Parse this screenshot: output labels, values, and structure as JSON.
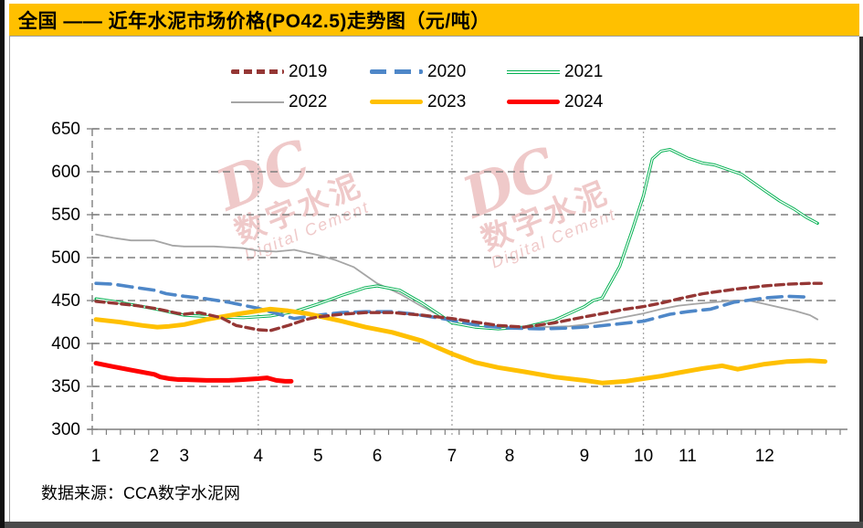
{
  "header": {
    "title": "全国 —— 近年水泥市场价格(PO42.5)走势图（元/吨）",
    "bg_color": "#FFC000"
  },
  "legend": {
    "items": [
      {
        "label": "2019",
        "color": "#953735",
        "style": "dash-short"
      },
      {
        "label": "2020",
        "color": "#4E87C8",
        "style": "dash-long"
      },
      {
        "label": "2021",
        "color": "#00B050",
        "style": "double"
      },
      {
        "label": "2022",
        "color": "#A5A5A5",
        "style": "solid-thin"
      },
      {
        "label": "2023",
        "color": "#FFC000",
        "style": "solid-thick"
      },
      {
        "label": "2024",
        "color": "#FF0000",
        "style": "solid-thick"
      }
    ]
  },
  "watermark": {
    "dc": "DC",
    "cn": "数字水泥",
    "en": "Digital Cement",
    "color": "#E09494"
  },
  "footer": {
    "text": "数据来源：CCA数字水泥网"
  },
  "chart_data": {
    "type": "line",
    "title": "全国近年水泥市场价格(PO42.5)走势图",
    "ylabel": "元/吨",
    "y_axis": {
      "min": 300,
      "max": 650,
      "step": 50,
      "ticks": [
        300,
        350,
        400,
        450,
        500,
        550,
        600,
        650
      ]
    },
    "x_axis": {
      "unit": "month",
      "labels": [
        "1",
        "2",
        "3",
        "4",
        "5",
        "6",
        "7",
        "8",
        "9",
        "10",
        "11",
        "12"
      ],
      "month_anchor_frac": [
        0.005,
        0.083,
        0.123,
        0.222,
        0.302,
        0.381,
        0.481,
        0.558,
        0.658,
        0.737,
        0.796,
        0.899,
        1.0
      ],
      "quarter_gridline_months": [
        4,
        7,
        10
      ],
      "minor_ticks": 54,
      "grid": "dashed-horizontal"
    },
    "legend_position": "top",
    "draw_order": [
      "2022",
      "2021",
      "2020",
      "2023",
      "2019",
      "2024"
    ],
    "series": [
      {
        "name": "2019",
        "color": "#953735",
        "style": "dash-short",
        "stroke_width": 3.4,
        "points": [
          [
            1,
            449
          ],
          [
            1.3,
            447
          ],
          [
            1.7,
            444
          ],
          [
            2,
            441
          ],
          [
            2.4,
            438
          ],
          [
            2.8,
            435
          ],
          [
            3,
            434
          ],
          [
            3.2,
            436
          ],
          [
            3.5,
            430
          ],
          [
            3.7,
            421
          ],
          [
            4,
            416
          ],
          [
            4.2,
            415
          ],
          [
            4.5,
            421
          ],
          [
            4.8,
            428
          ],
          [
            5,
            431
          ],
          [
            5.4,
            434
          ],
          [
            5.8,
            436
          ],
          [
            6.2,
            436
          ],
          [
            6.6,
            433
          ],
          [
            7,
            429
          ],
          [
            7.4,
            425
          ],
          [
            7.8,
            421
          ],
          [
            8.2,
            419
          ],
          [
            8.6,
            424
          ],
          [
            9,
            431
          ],
          [
            9.4,
            436
          ],
          [
            9.7,
            440
          ],
          [
            10,
            443
          ],
          [
            10.4,
            447
          ],
          [
            10.8,
            452
          ],
          [
            11.2,
            458
          ],
          [
            11.6,
            463
          ],
          [
            12,
            467
          ],
          [
            12.3,
            469
          ],
          [
            12.6,
            470
          ],
          [
            12.75,
            470
          ]
        ]
      },
      {
        "name": "2020",
        "color": "#4E87C8",
        "style": "dash-long",
        "stroke_width": 3.6,
        "points": [
          [
            1,
            470
          ],
          [
            1.3,
            469
          ],
          [
            1.6,
            466
          ],
          [
            2,
            462
          ],
          [
            2.4,
            458
          ],
          [
            2.8,
            456
          ],
          [
            3,
            455
          ],
          [
            3.3,
            452
          ],
          [
            3.6,
            448
          ],
          [
            4,
            441
          ],
          [
            4.3,
            435
          ],
          [
            4.6,
            429
          ],
          [
            5,
            433
          ],
          [
            5.4,
            436
          ],
          [
            5.8,
            437
          ],
          [
            6.2,
            437
          ],
          [
            6.5,
            434
          ],
          [
            6.8,
            430
          ],
          [
            7,
            427
          ],
          [
            7.3,
            423
          ],
          [
            7.6,
            420
          ],
          [
            8,
            418
          ],
          [
            8.4,
            417
          ],
          [
            8.8,
            418
          ],
          [
            9.2,
            420
          ],
          [
            9.6,
            423
          ],
          [
            10,
            426
          ],
          [
            10.3,
            430
          ],
          [
            10.6,
            434
          ],
          [
            11,
            437
          ],
          [
            11.3,
            440
          ],
          [
            11.6,
            448
          ],
          [
            12,
            453
          ],
          [
            12.3,
            455
          ],
          [
            12.55,
            454
          ]
        ]
      },
      {
        "name": "2021",
        "color": "#00B050",
        "style": "double",
        "stroke_width": 3.2,
        "points": [
          [
            1,
            452
          ],
          [
            1.4,
            448
          ],
          [
            1.8,
            443
          ],
          [
            2.2,
            439
          ],
          [
            2.6,
            436
          ],
          [
            3,
            433
          ],
          [
            3.4,
            431
          ],
          [
            3.8,
            430
          ],
          [
            4.2,
            432
          ],
          [
            4.6,
            437
          ],
          [
            5,
            446
          ],
          [
            5.4,
            456
          ],
          [
            5.8,
            465
          ],
          [
            6,
            467
          ],
          [
            6.3,
            462
          ],
          [
            6.6,
            447
          ],
          [
            7,
            424
          ],
          [
            7.4,
            419
          ],
          [
            7.8,
            417
          ],
          [
            8.2,
            419
          ],
          [
            8.6,
            427
          ],
          [
            9,
            443
          ],
          [
            9.15,
            450
          ],
          [
            9.3,
            453
          ],
          [
            9.6,
            490
          ],
          [
            9.8,
            530
          ],
          [
            10,
            572
          ],
          [
            10.2,
            615
          ],
          [
            10.4,
            624
          ],
          [
            10.6,
            626
          ],
          [
            10.8,
            621
          ],
          [
            11,
            616
          ],
          [
            11.2,
            610
          ],
          [
            11.35,
            608
          ],
          [
            11.7,
            597
          ],
          [
            12,
            578
          ],
          [
            12.2,
            566
          ],
          [
            12.4,
            556
          ],
          [
            12.55,
            547
          ],
          [
            12.7,
            540
          ]
        ]
      },
      {
        "name": "2022",
        "color": "#A5A5A5",
        "style": "solid",
        "stroke_width": 1.8,
        "points": [
          [
            1,
            527
          ],
          [
            1.3,
            523
          ],
          [
            1.6,
            520
          ],
          [
            2,
            520
          ],
          [
            2.3,
            517
          ],
          [
            2.6,
            514
          ],
          [
            3,
            513
          ],
          [
            3.4,
            513
          ],
          [
            3.8,
            511
          ],
          [
            4,
            508
          ],
          [
            4.3,
            507
          ],
          [
            4.6,
            509
          ],
          [
            5,
            503
          ],
          [
            5.3,
            497
          ],
          [
            5.6,
            489
          ],
          [
            6,
            470
          ],
          [
            6.3,
            458
          ],
          [
            6.6,
            443
          ],
          [
            7,
            425
          ],
          [
            7.3,
            420
          ],
          [
            7.6,
            418
          ],
          [
            8,
            418
          ],
          [
            8.4,
            419
          ],
          [
            8.8,
            420
          ],
          [
            9,
            422
          ],
          [
            9.4,
            427
          ],
          [
            9.7,
            431
          ],
          [
            10,
            435
          ],
          [
            10.4,
            440
          ],
          [
            10.8,
            444
          ],
          [
            11.2,
            447
          ],
          [
            11.6,
            450
          ],
          [
            11.8,
            450
          ],
          [
            12,
            446
          ],
          [
            12.2,
            442
          ],
          [
            12.4,
            438
          ],
          [
            12.6,
            433
          ],
          [
            12.7,
            428
          ]
        ]
      },
      {
        "name": "2023",
        "color": "#FFC000",
        "style": "solid",
        "stroke_width": 5,
        "points": [
          [
            1,
            428
          ],
          [
            1.4,
            425
          ],
          [
            1.8,
            421
          ],
          [
            2.1,
            419
          ],
          [
            2.5,
            420
          ],
          [
            3,
            422
          ],
          [
            3.3,
            428
          ],
          [
            3.7,
            434
          ],
          [
            4,
            438
          ],
          [
            4.2,
            440
          ],
          [
            4.5,
            438
          ],
          [
            4.8,
            435
          ],
          [
            5,
            432
          ],
          [
            5.4,
            426
          ],
          [
            5.8,
            419
          ],
          [
            6.2,
            413
          ],
          [
            6.6,
            403
          ],
          [
            7,
            388
          ],
          [
            7.4,
            378
          ],
          [
            7.8,
            372
          ],
          [
            8.2,
            367
          ],
          [
            8.6,
            361
          ],
          [
            9,
            357
          ],
          [
            9.3,
            354
          ],
          [
            9.7,
            356
          ],
          [
            10,
            359
          ],
          [
            10.4,
            362
          ],
          [
            10.8,
            366
          ],
          [
            11.2,
            371
          ],
          [
            11.45,
            374
          ],
          [
            11.65,
            370
          ],
          [
            12,
            376
          ],
          [
            12.3,
            379
          ],
          [
            12.6,
            380
          ],
          [
            12.8,
            379
          ]
        ]
      },
      {
        "name": "2024",
        "color": "#FF0000",
        "style": "solid",
        "stroke_width": 5,
        "points": [
          [
            1,
            377
          ],
          [
            1.3,
            373
          ],
          [
            1.6,
            369
          ],
          [
            2,
            364
          ],
          [
            2.2,
            361
          ],
          [
            2.5,
            359
          ],
          [
            2.8,
            358
          ],
          [
            3,
            358
          ],
          [
            3.3,
            357
          ],
          [
            3.6,
            357
          ],
          [
            3.8,
            358
          ],
          [
            4,
            359
          ],
          [
            4.15,
            360
          ],
          [
            4.3,
            357
          ],
          [
            4.45,
            356
          ],
          [
            4.55,
            356
          ]
        ]
      }
    ]
  }
}
